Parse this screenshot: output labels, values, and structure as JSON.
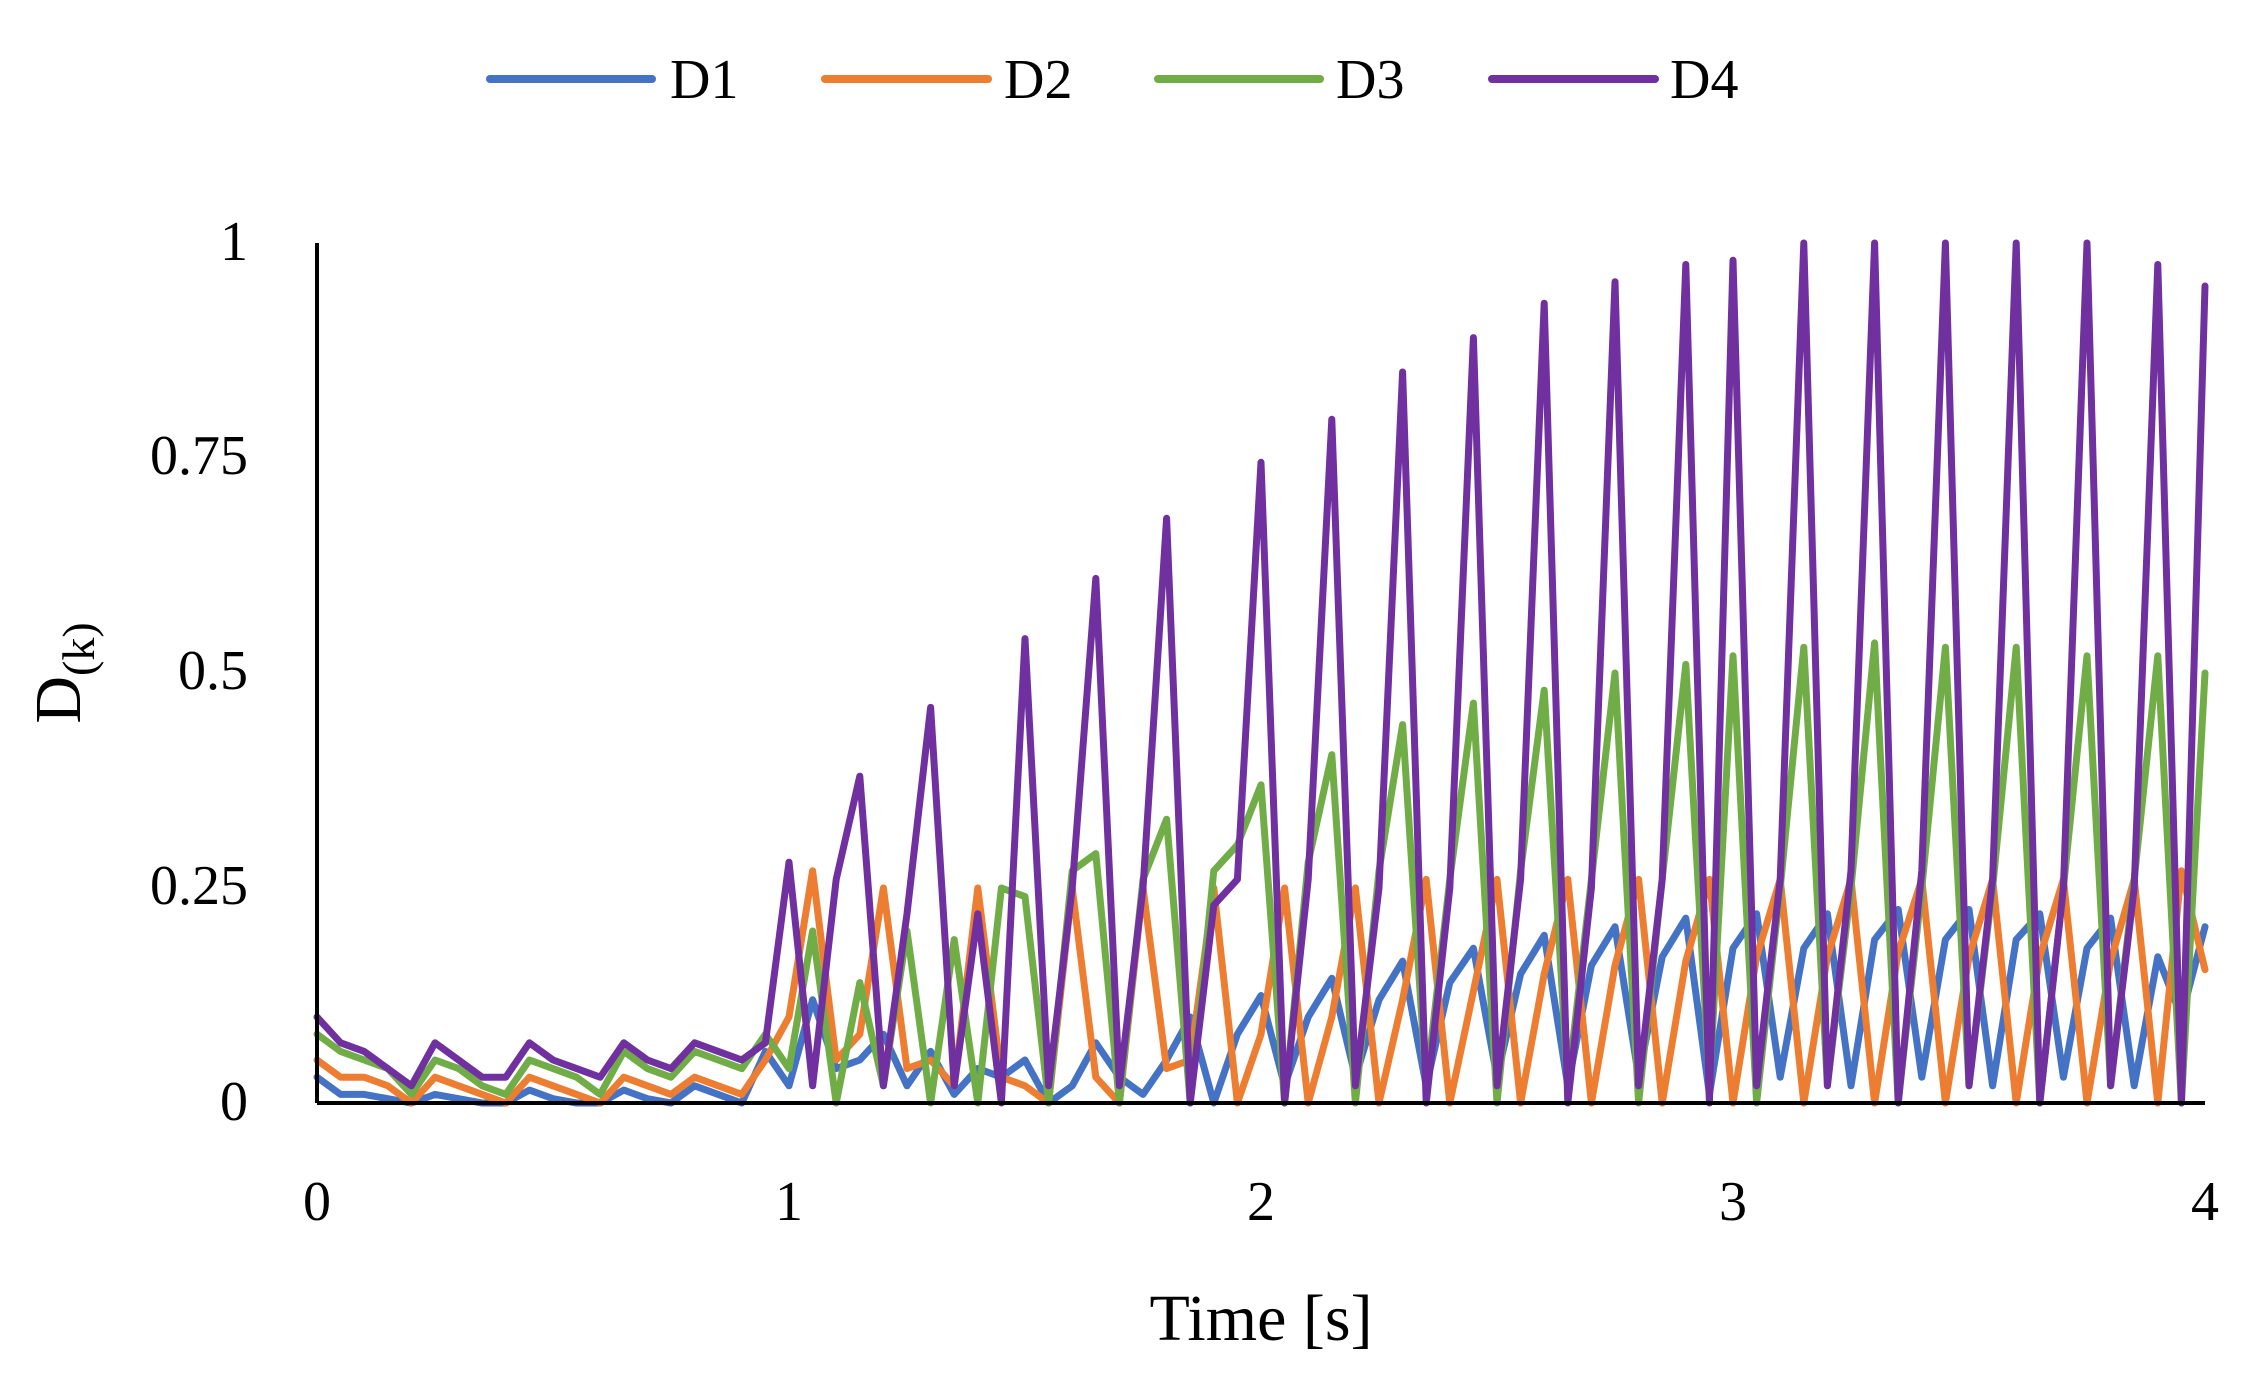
{
  "chart_data": {
    "type": "line",
    "title": "",
    "xlabel": "Time [s]",
    "ylabel": "D",
    "ylabel_subscript": "(k)",
    "xlim": [
      0,
      4
    ],
    "ylim": [
      0,
      1
    ],
    "x_ticks": [
      "0",
      "1",
      "2",
      "3",
      "4"
    ],
    "y_ticks": [
      "0",
      "0.25",
      "0.5",
      "0.75",
      "1"
    ],
    "grid": false,
    "legend_position": "top",
    "x_sampled": [
      0.0,
      0.05,
      0.1,
      0.15,
      0.2,
      0.25,
      0.3,
      0.35,
      0.4,
      0.45,
      0.5,
      0.55,
      0.6,
      0.65,
      0.7,
      0.75,
      0.8,
      0.85,
      0.9,
      0.95,
      1.0,
      1.05,
      1.1,
      1.15,
      1.2,
      1.25,
      1.3,
      1.35,
      1.4,
      1.45,
      1.5,
      1.55,
      1.6,
      1.65,
      1.7,
      1.75,
      1.8,
      1.85,
      1.9,
      1.95,
      2.0,
      2.05,
      2.1,
      2.15,
      2.2,
      2.25,
      2.3,
      2.35,
      2.4,
      2.45,
      2.5,
      2.55,
      2.6,
      2.65,
      2.7,
      2.75,
      2.8,
      2.85,
      2.9,
      2.95,
      3.0,
      3.05,
      3.1,
      3.15,
      3.2,
      3.25,
      3.3,
      3.35,
      3.4,
      3.45,
      3.5,
      3.55,
      3.6,
      3.65,
      3.7,
      3.75,
      3.8,
      3.85,
      3.9,
      3.95,
      4.0
    ],
    "series": [
      {
        "name": "D1",
        "color": "#4472C4",
        "values": [
          0.03,
          0.01,
          0.01,
          0.005,
          0.0,
          0.01,
          0.005,
          0.0,
          0.0,
          0.015,
          0.005,
          0.0,
          0.0,
          0.015,
          0.005,
          0.0,
          0.02,
          0.01,
          0.0,
          0.06,
          0.02,
          0.12,
          0.04,
          0.05,
          0.08,
          0.02,
          0.06,
          0.01,
          0.04,
          0.03,
          0.05,
          0.0,
          0.02,
          0.07,
          0.03,
          0.01,
          0.05,
          0.1,
          0.0,
          0.08,
          0.125,
          0.02,
          0.1,
          0.145,
          0.03,
          0.12,
          0.165,
          0.02,
          0.14,
          0.18,
          0.03,
          0.15,
          0.195,
          0.02,
          0.16,
          0.205,
          0.03,
          0.17,
          0.215,
          0.01,
          0.18,
          0.22,
          0.03,
          0.18,
          0.22,
          0.02,
          0.19,
          0.225,
          0.03,
          0.19,
          0.225,
          0.02,
          0.19,
          0.22,
          0.03,
          0.18,
          0.215,
          0.02,
          0.17,
          0.1,
          0.205
        ]
      },
      {
        "name": "D2",
        "color": "#ED7D31",
        "values": [
          0.05,
          0.03,
          0.03,
          0.02,
          0.0,
          0.03,
          0.02,
          0.01,
          0.0,
          0.03,
          0.02,
          0.01,
          0.0,
          0.03,
          0.02,
          0.01,
          0.03,
          0.02,
          0.01,
          0.05,
          0.1,
          0.27,
          0.05,
          0.08,
          0.25,
          0.04,
          0.05,
          0.02,
          0.25,
          0.03,
          0.02,
          0.0,
          0.25,
          0.03,
          0.0,
          0.25,
          0.04,
          0.05,
          0.25,
          0.0,
          0.08,
          0.25,
          0.0,
          0.1,
          0.25,
          0.0,
          0.12,
          0.26,
          0.0,
          0.13,
          0.26,
          0.0,
          0.15,
          0.26,
          0.0,
          0.16,
          0.26,
          0.0,
          0.165,
          0.26,
          0.0,
          0.17,
          0.26,
          0.0,
          0.17,
          0.26,
          0.0,
          0.175,
          0.26,
          0.0,
          0.17,
          0.26,
          0.0,
          0.17,
          0.26,
          0.0,
          0.165,
          0.26,
          0.0,
          0.27,
          0.155
        ]
      },
      {
        "name": "D3",
        "color": "#70AD47",
        "values": [
          0.08,
          0.06,
          0.05,
          0.04,
          0.01,
          0.05,
          0.04,
          0.02,
          0.01,
          0.05,
          0.04,
          0.03,
          0.01,
          0.06,
          0.04,
          0.03,
          0.06,
          0.05,
          0.04,
          0.08,
          0.04,
          0.2,
          0.0,
          0.14,
          0.02,
          0.2,
          0.0,
          0.19,
          0.0,
          0.25,
          0.24,
          0.0,
          0.27,
          0.29,
          0.0,
          0.26,
          0.33,
          0.0,
          0.27,
          0.3,
          0.37,
          0.0,
          0.28,
          0.405,
          0.0,
          0.27,
          0.44,
          0.02,
          0.26,
          0.465,
          0.0,
          0.27,
          0.48,
          0.02,
          0.26,
          0.5,
          0.0,
          0.26,
          0.51,
          0.02,
          0.52,
          0.0,
          0.25,
          0.53,
          0.02,
          0.25,
          0.535,
          0.0,
          0.25,
          0.53,
          0.02,
          0.25,
          0.53,
          0.0,
          0.25,
          0.52,
          0.02,
          0.26,
          0.52,
          0.0,
          0.5
        ]
      },
      {
        "name": "D4",
        "color": "#7030A0",
        "values": [
          0.1,
          0.07,
          0.06,
          0.04,
          0.02,
          0.07,
          0.05,
          0.03,
          0.03,
          0.07,
          0.05,
          0.04,
          0.03,
          0.07,
          0.05,
          0.04,
          0.07,
          0.06,
          0.05,
          0.07,
          0.28,
          0.02,
          0.26,
          0.38,
          0.02,
          0.22,
          0.46,
          0.02,
          0.22,
          0.0,
          0.54,
          0.02,
          0.25,
          0.61,
          0.02,
          0.25,
          0.68,
          0.0,
          0.23,
          0.26,
          0.745,
          0.0,
          0.26,
          0.795,
          0.02,
          0.25,
          0.85,
          0.0,
          0.25,
          0.89,
          0.02,
          0.26,
          0.93,
          0.0,
          0.25,
          0.955,
          0.02,
          0.26,
          0.975,
          0.0,
          0.98,
          0.02,
          0.26,
          1.0,
          0.02,
          0.27,
          1.0,
          0.0,
          0.27,
          1.0,
          0.02,
          0.26,
          1.0,
          0.0,
          0.25,
          1.0,
          0.02,
          0.25,
          0.975,
          0.0,
          0.95
        ]
      }
    ]
  }
}
